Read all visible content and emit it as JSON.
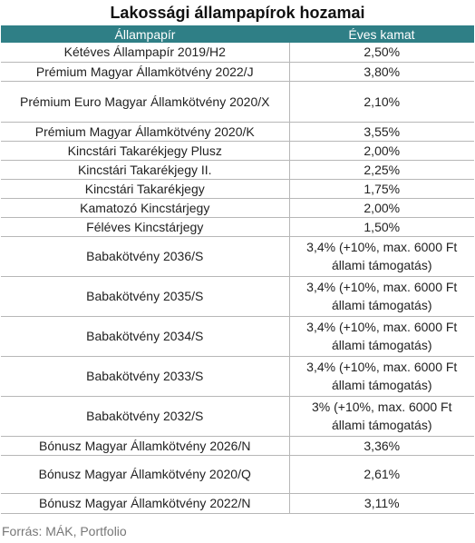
{
  "title": "Lakossági állampapírok hozamai",
  "colors": {
    "header_bg": "#2f7f86",
    "header_text": "#ffffff",
    "row_border": "#b7b7b7"
  },
  "columns": [
    "Állampapír",
    "Éves kamat"
  ],
  "rows": [
    {
      "name": "Kétéves Állampapír 2019/H2",
      "rate": "2,50%"
    },
    {
      "name": "Prémium Magyar Államkötvény 2022/J",
      "rate": "3,80%"
    },
    {
      "name": "Prémium Euro Magyar Államkötvény 2020/X",
      "rate": "2,10%"
    },
    {
      "name": "Prémium Magyar Államkötvény 2020/K",
      "rate": "3,55%"
    },
    {
      "name": "Kincstári Takarékjegy Plusz",
      "rate": "2,00%"
    },
    {
      "name": "Kincstári Takarékjegy II.",
      "rate": "2,25%"
    },
    {
      "name": "Kincstári Takarékjegy",
      "rate": "1,75%"
    },
    {
      "name": "Kamatozó Kincstárjegy",
      "rate": "2,00%"
    },
    {
      "name": "Féléves Kincstárjegy",
      "rate": "1,50%"
    },
    {
      "name": "Babakötvény 2036/S",
      "rate": "3,4% (+10%, max. 6000 Ft állami támogatás)"
    },
    {
      "name": "Babakötvény 2035/S",
      "rate": "3,4% (+10%, max. 6000 Ft állami támogatás)"
    },
    {
      "name": "Babakötvény 2034/S",
      "rate": "3,4% (+10%, max. 6000 Ft állami támogatás)"
    },
    {
      "name": "Babakötvény 2033/S",
      "rate": "3,4% (+10%, max. 6000 Ft állami támogatás)"
    },
    {
      "name": "Babakötvény 2032/S",
      "rate": "3% (+10%, max. 6000 Ft állami támogatás)"
    },
    {
      "name": "Bónusz Magyar Államkötvény 2026/N",
      "rate": "3,36%"
    },
    {
      "name": "Bónusz Magyar Államkötvény 2020/Q",
      "rate": "2,61%"
    },
    {
      "name": "Bónusz Magyar Államkötvény 2022/N",
      "rate": "3,11%"
    }
  ],
  "source": "Forrás: MÁK, Portfolio"
}
